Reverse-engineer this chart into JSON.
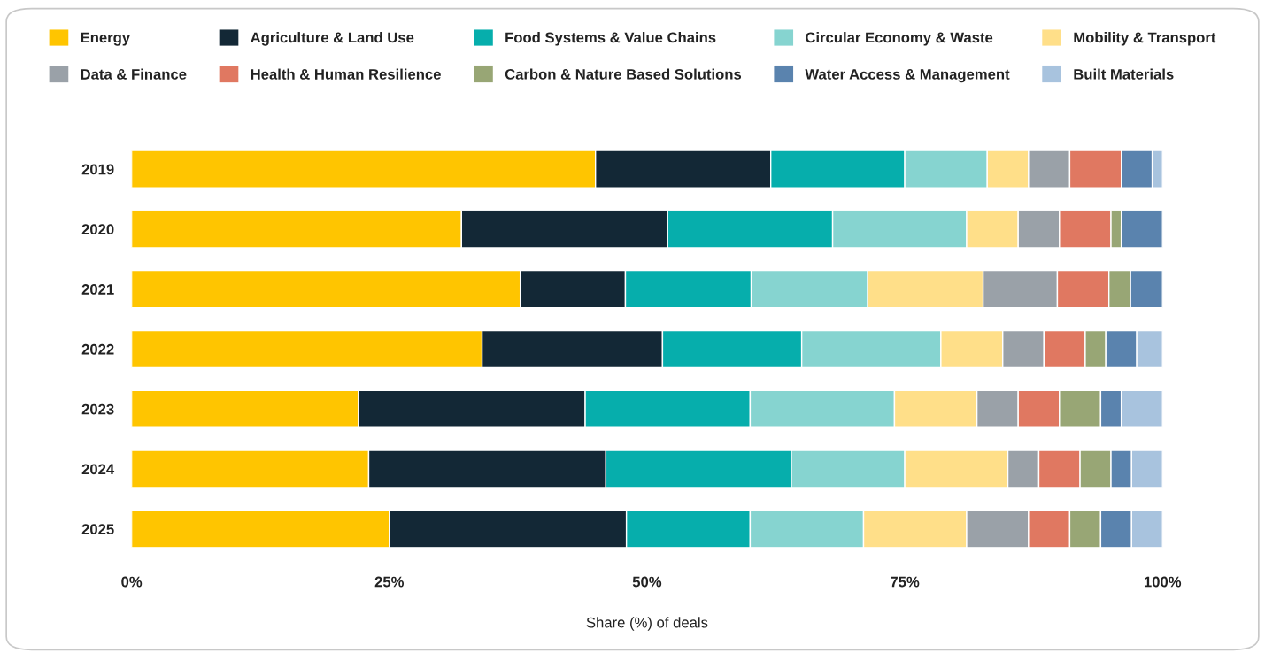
{
  "chart_data": {
    "type": "bar",
    "orientation": "horizontal",
    "stacked": true,
    "xlabel": "Share (%) of deals",
    "categories": [
      "2019",
      "2020",
      "2021",
      "2022",
      "2023",
      "2024",
      "2025"
    ],
    "xlim": [
      0,
      100
    ],
    "xticks": [
      {
        "value": 0,
        "label": "0%"
      },
      {
        "value": 25,
        "label": "25%"
      },
      {
        "value": 50,
        "label": "50%"
      },
      {
        "value": 75,
        "label": "75%"
      },
      {
        "value": 100,
        "label": "100%"
      }
    ],
    "grid": false,
    "legend": "top",
    "series": [
      {
        "name": "Energy",
        "color": "#ffc500",
        "values": [
          45,
          32,
          37.7,
          34,
          22,
          23,
          25
        ]
      },
      {
        "name": "Agriculture & Land Use",
        "color": "#132836",
        "values": [
          17,
          20,
          10.2,
          17.5,
          22,
          23,
          23
        ]
      },
      {
        "name": "Food Systems & Value Chains",
        "color": "#06aeac",
        "values": [
          13,
          16,
          12.2,
          13.5,
          16,
          18,
          12
        ]
      },
      {
        "name": "Circular Economy & Waste",
        "color": "#86d4d0",
        "values": [
          8,
          13,
          11.3,
          13.5,
          14,
          11,
          11
        ]
      },
      {
        "name": "Mobility & Transport",
        "color": "#ffdf89",
        "values": [
          4,
          5,
          11.2,
          6,
          8,
          10,
          10
        ]
      },
      {
        "name": "Data & Finance",
        "color": "#9aa1a8",
        "values": [
          4,
          4,
          7.2,
          4,
          4,
          3,
          6
        ]
      },
      {
        "name": "Health & Human Resilience",
        "color": "#e07861",
        "values": [
          5,
          5,
          5,
          4,
          4,
          4,
          4
        ]
      },
      {
        "name": "Carbon & Nature Based Solutions",
        "color": "#98a675",
        "values": [
          0,
          1,
          2.1,
          2,
          4,
          3,
          3
        ]
      },
      {
        "name": "Water Access & Management",
        "color": "#5a83ae",
        "values": [
          3,
          4,
          3.1,
          3,
          2,
          2,
          3
        ]
      },
      {
        "name": "Built Materials",
        "color": "#a8c3de",
        "values": [
          1,
          0,
          0,
          2.5,
          4,
          3,
          3
        ]
      }
    ]
  }
}
